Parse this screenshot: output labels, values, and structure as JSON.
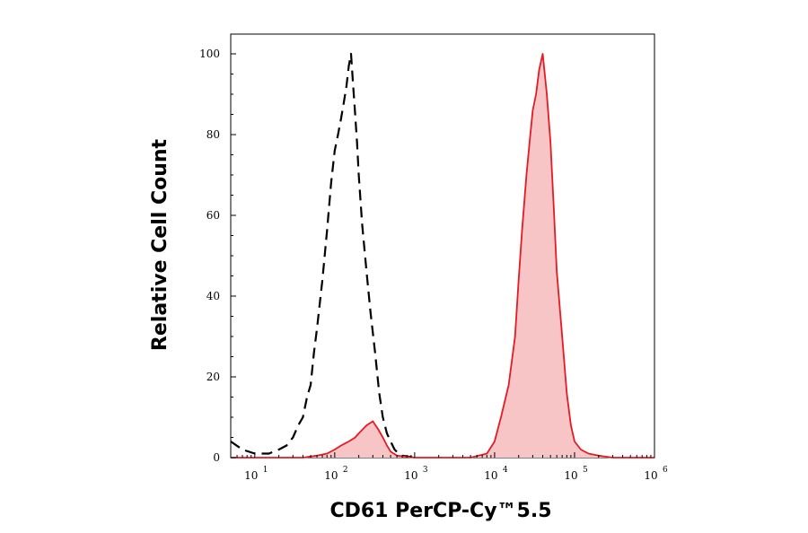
{
  "chart_data": {
    "type": "area",
    "xlabel": "CD61 PerCP-Cy™5.5",
    "ylabel": "Relative Cell Count",
    "x_scale": "log",
    "xlim": [
      5,
      1000000
    ],
    "ylim": [
      0,
      100
    ],
    "x_ticks": [
      {
        "base": "10",
        "exp": "1",
        "value": 10
      },
      {
        "base": "10",
        "exp": "2",
        "value": 100
      },
      {
        "base": "10",
        "exp": "3",
        "value": 1000
      },
      {
        "base": "10",
        "exp": "4",
        "value": 10000
      },
      {
        "base": "10",
        "exp": "5",
        "value": 100000
      },
      {
        "base": "10",
        "exp": "6",
        "value": 1000000
      }
    ],
    "y_ticks": [
      {
        "label": "0",
        "value": 0
      },
      {
        "label": "20",
        "value": 20
      },
      {
        "label": "40",
        "value": 40
      },
      {
        "label": "60",
        "value": 60
      },
      {
        "label": "80",
        "value": 80
      },
      {
        "label": "100",
        "value": 100
      }
    ],
    "grid": false,
    "series": [
      {
        "style": "dashed",
        "color": "#000000",
        "fill": "none",
        "x": [
          5,
          7,
          10,
          15,
          20,
          25,
          30,
          35,
          40,
          45,
          50,
          55,
          60,
          70,
          80,
          90,
          100,
          110,
          120,
          130,
          140,
          150,
          160,
          170,
          180,
          190,
          200,
          220,
          250,
          280,
          320,
          360,
          400,
          450,
          500,
          560,
          630,
          700,
          800,
          1000
        ],
        "y": [
          4,
          2,
          1,
          1,
          2,
          3,
          5,
          8,
          10,
          15,
          18,
          26,
          32,
          44,
          56,
          68,
          76,
          80,
          84,
          88,
          92,
          97,
          100,
          92,
          85,
          78,
          70,
          58,
          46,
          36,
          26,
          16,
          10,
          6,
          4,
          2,
          1,
          0.5,
          0.3,
          0
        ]
      },
      {
        "style": "solid",
        "color": "#e31b23",
        "fill": "#f8c5c7",
        "x": [
          5,
          20,
          40,
          60,
          80,
          100,
          120,
          150,
          180,
          200,
          250,
          300,
          350,
          400,
          450,
          500,
          600,
          800,
          1000,
          2000,
          5000,
          8000,
          10000,
          12000,
          15000,
          18000,
          20000,
          22000,
          25000,
          28000,
          30000,
          33000,
          36000,
          40000,
          45000,
          50000,
          55000,
          60000,
          70000,
          80000,
          90000,
          100000,
          120000,
          150000,
          200000,
          300000,
          1000000
        ],
        "y": [
          0,
          0,
          0,
          0.5,
          1,
          2,
          3,
          4,
          5,
          6,
          8,
          9,
          7,
          5,
          3,
          1.5,
          0.5,
          0.2,
          0,
          0,
          0,
          1,
          4,
          10,
          18,
          30,
          44,
          56,
          70,
          80,
          86,
          90,
          96,
          100,
          90,
          78,
          62,
          46,
          30,
          16,
          8,
          4,
          2,
          1,
          0.5,
          0,
          0
        ]
      }
    ]
  }
}
